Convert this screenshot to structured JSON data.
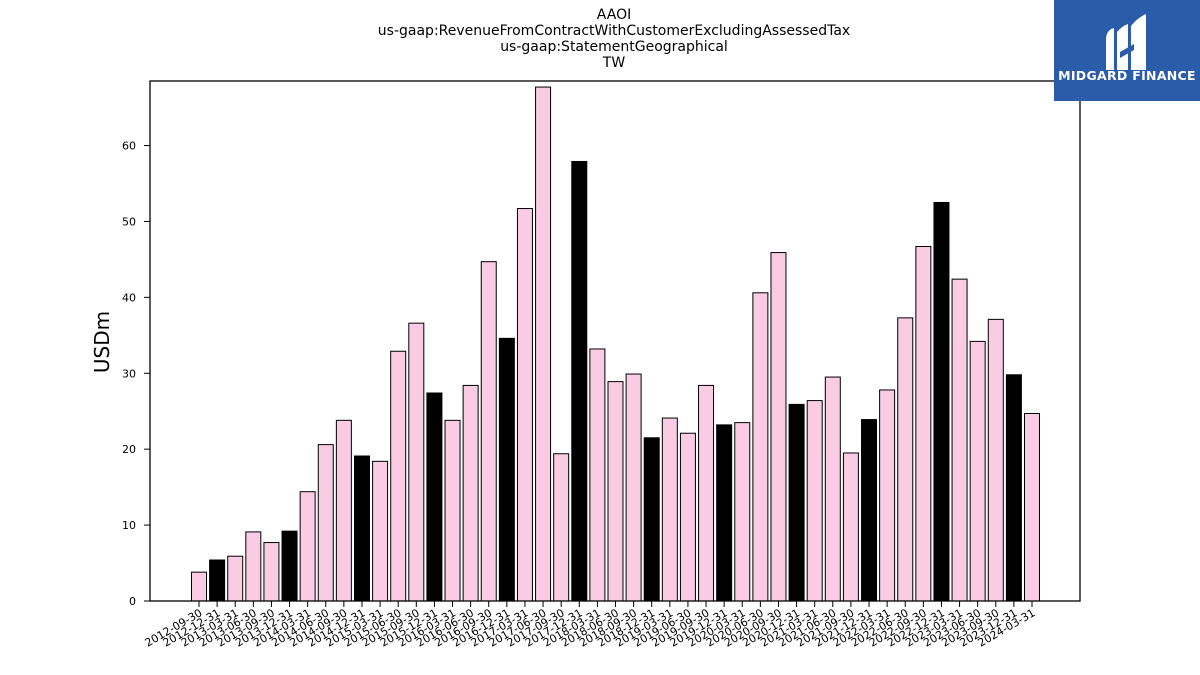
{
  "titles": {
    "line1": "AAOI",
    "line2": "us-gaap:RevenueFromContractWithCustomerExcludingAssessedTax",
    "line3": "us-gaap:StatementGeographical",
    "line4": "TW"
  },
  "brand": {
    "name": "MIDGARD FINANCE",
    "logo_color": "#2a5caa"
  },
  "colors": {
    "bar_default": "#f9cce3",
    "bar_q4": "#000000",
    "bar_edge": "#000000"
  },
  "chart_data": {
    "type": "bar",
    "title": "AAOI us-gaap:RevenueFromContractWithCustomerExcludingAssessedTax us-gaap:StatementGeographical TW",
    "xlabel": "",
    "ylabel": "USDm",
    "ylim": [
      0,
      68.5
    ],
    "yticks": [
      0,
      10,
      20,
      30,
      40,
      50,
      60
    ],
    "grid": false,
    "categories": [
      "2012-09-30",
      "2012-12-31",
      "2013-03-31",
      "2013-06-30",
      "2013-09-30",
      "2013-12-31",
      "2014-03-31",
      "2014-06-30",
      "2014-09-30",
      "2014-12-31",
      "2015-03-31",
      "2015-06-30",
      "2015-09-30",
      "2015-12-31",
      "2016-03-31",
      "2016-06-30",
      "2016-09-30",
      "2016-12-31",
      "2017-03-31",
      "2017-06-30",
      "2017-09-30",
      "2017-12-31",
      "2018-03-31",
      "2018-06-30",
      "2018-09-30",
      "2018-12-31",
      "2019-03-31",
      "2019-06-30",
      "2019-09-30",
      "2019-12-31",
      "2020-03-31",
      "2020-06-30",
      "2020-09-30",
      "2020-12-31",
      "2021-03-31",
      "2021-06-30",
      "2021-09-30",
      "2021-12-31",
      "2022-03-31",
      "2022-06-30",
      "2022-09-30",
      "2022-12-31",
      "2023-03-31",
      "2023-06-30",
      "2023-09-30",
      "2023-12-31",
      "2024-03-31"
    ],
    "values": [
      3.8,
      5.4,
      5.9,
      9.1,
      7.7,
      9.2,
      14.4,
      20.6,
      23.8,
      19.1,
      18.4,
      32.9,
      36.6,
      27.4,
      23.8,
      28.4,
      44.7,
      34.6,
      51.7,
      67.7,
      19.4,
      57.9,
      33.2,
      28.9,
      29.9,
      21.5,
      24.1,
      22.1,
      28.4,
      23.2,
      23.5,
      40.6,
      45.9,
      25.9,
      26.4,
      29.5,
      19.5,
      23.9,
      27.8,
      37.3,
      46.7,
      52.5,
      42.4,
      34.2,
      37.1,
      29.8,
      24.7
    ],
    "highlight_rule": "December quarters drawn in black"
  }
}
